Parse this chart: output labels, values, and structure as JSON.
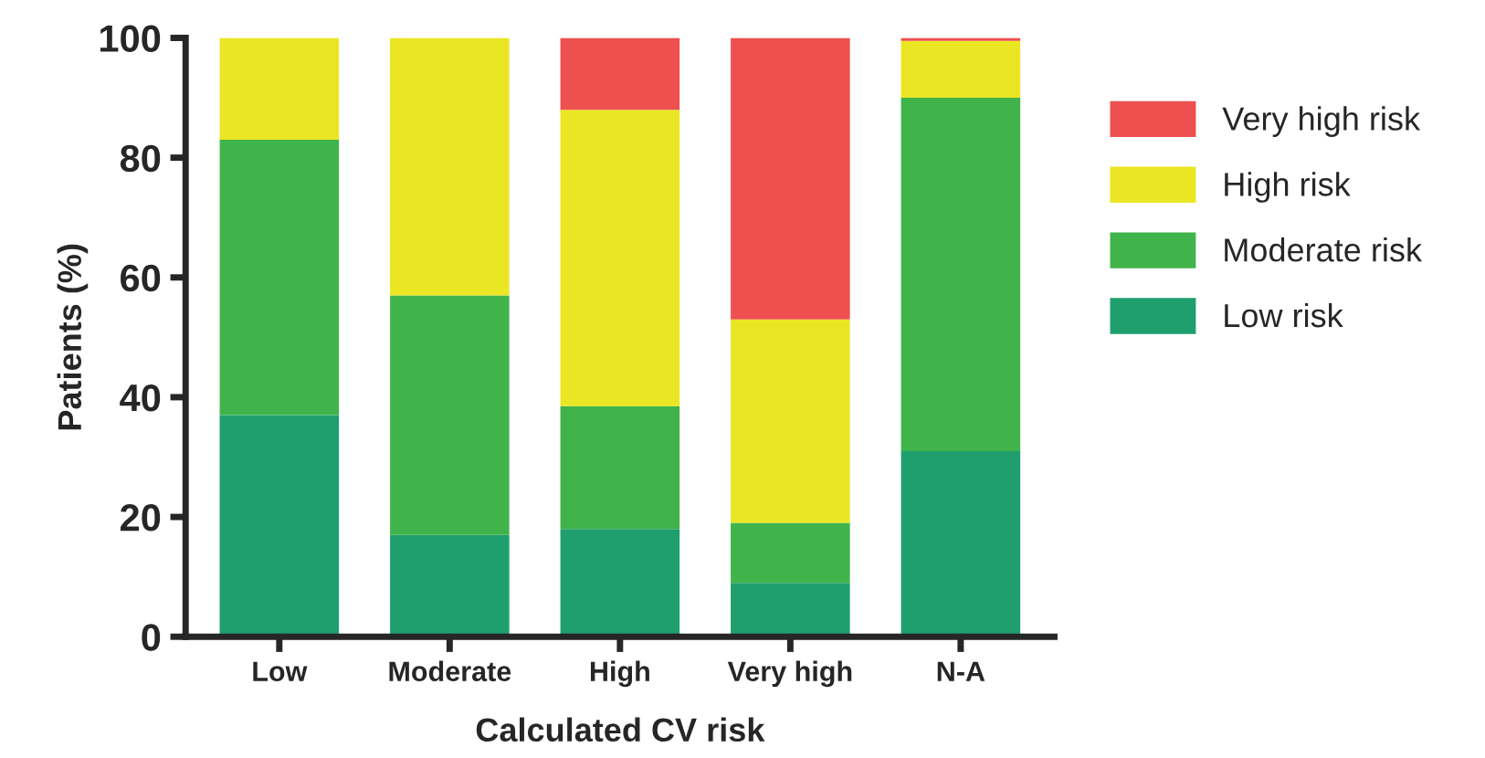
{
  "chart_data": {
    "type": "bar",
    "stacked": true,
    "xlabel": "Calculated CV risk",
    "ylabel": "Patients (%)",
    "categories": [
      "Low",
      "Moderate",
      "High",
      "Very high",
      "N-A"
    ],
    "series": [
      {
        "name": "Low risk",
        "color": "#1f9e6e",
        "values": [
          37,
          17,
          18,
          9,
          31
        ]
      },
      {
        "name": "Moderate risk",
        "color": "#40b44a",
        "values": [
          46,
          40,
          20.5,
          10,
          59
        ]
      },
      {
        "name": "High risk",
        "color": "#ebe624",
        "values": [
          17,
          43,
          49.5,
          34,
          9.5
        ]
      },
      {
        "name": "Very high risk",
        "color": "#ee5050",
        "values": [
          0,
          0,
          12,
          47,
          0.5
        ]
      }
    ],
    "ylim": [
      0,
      100
    ],
    "yticks": [
      0,
      20,
      40,
      60,
      80,
      100
    ],
    "grid": false,
    "legend": "right"
  }
}
